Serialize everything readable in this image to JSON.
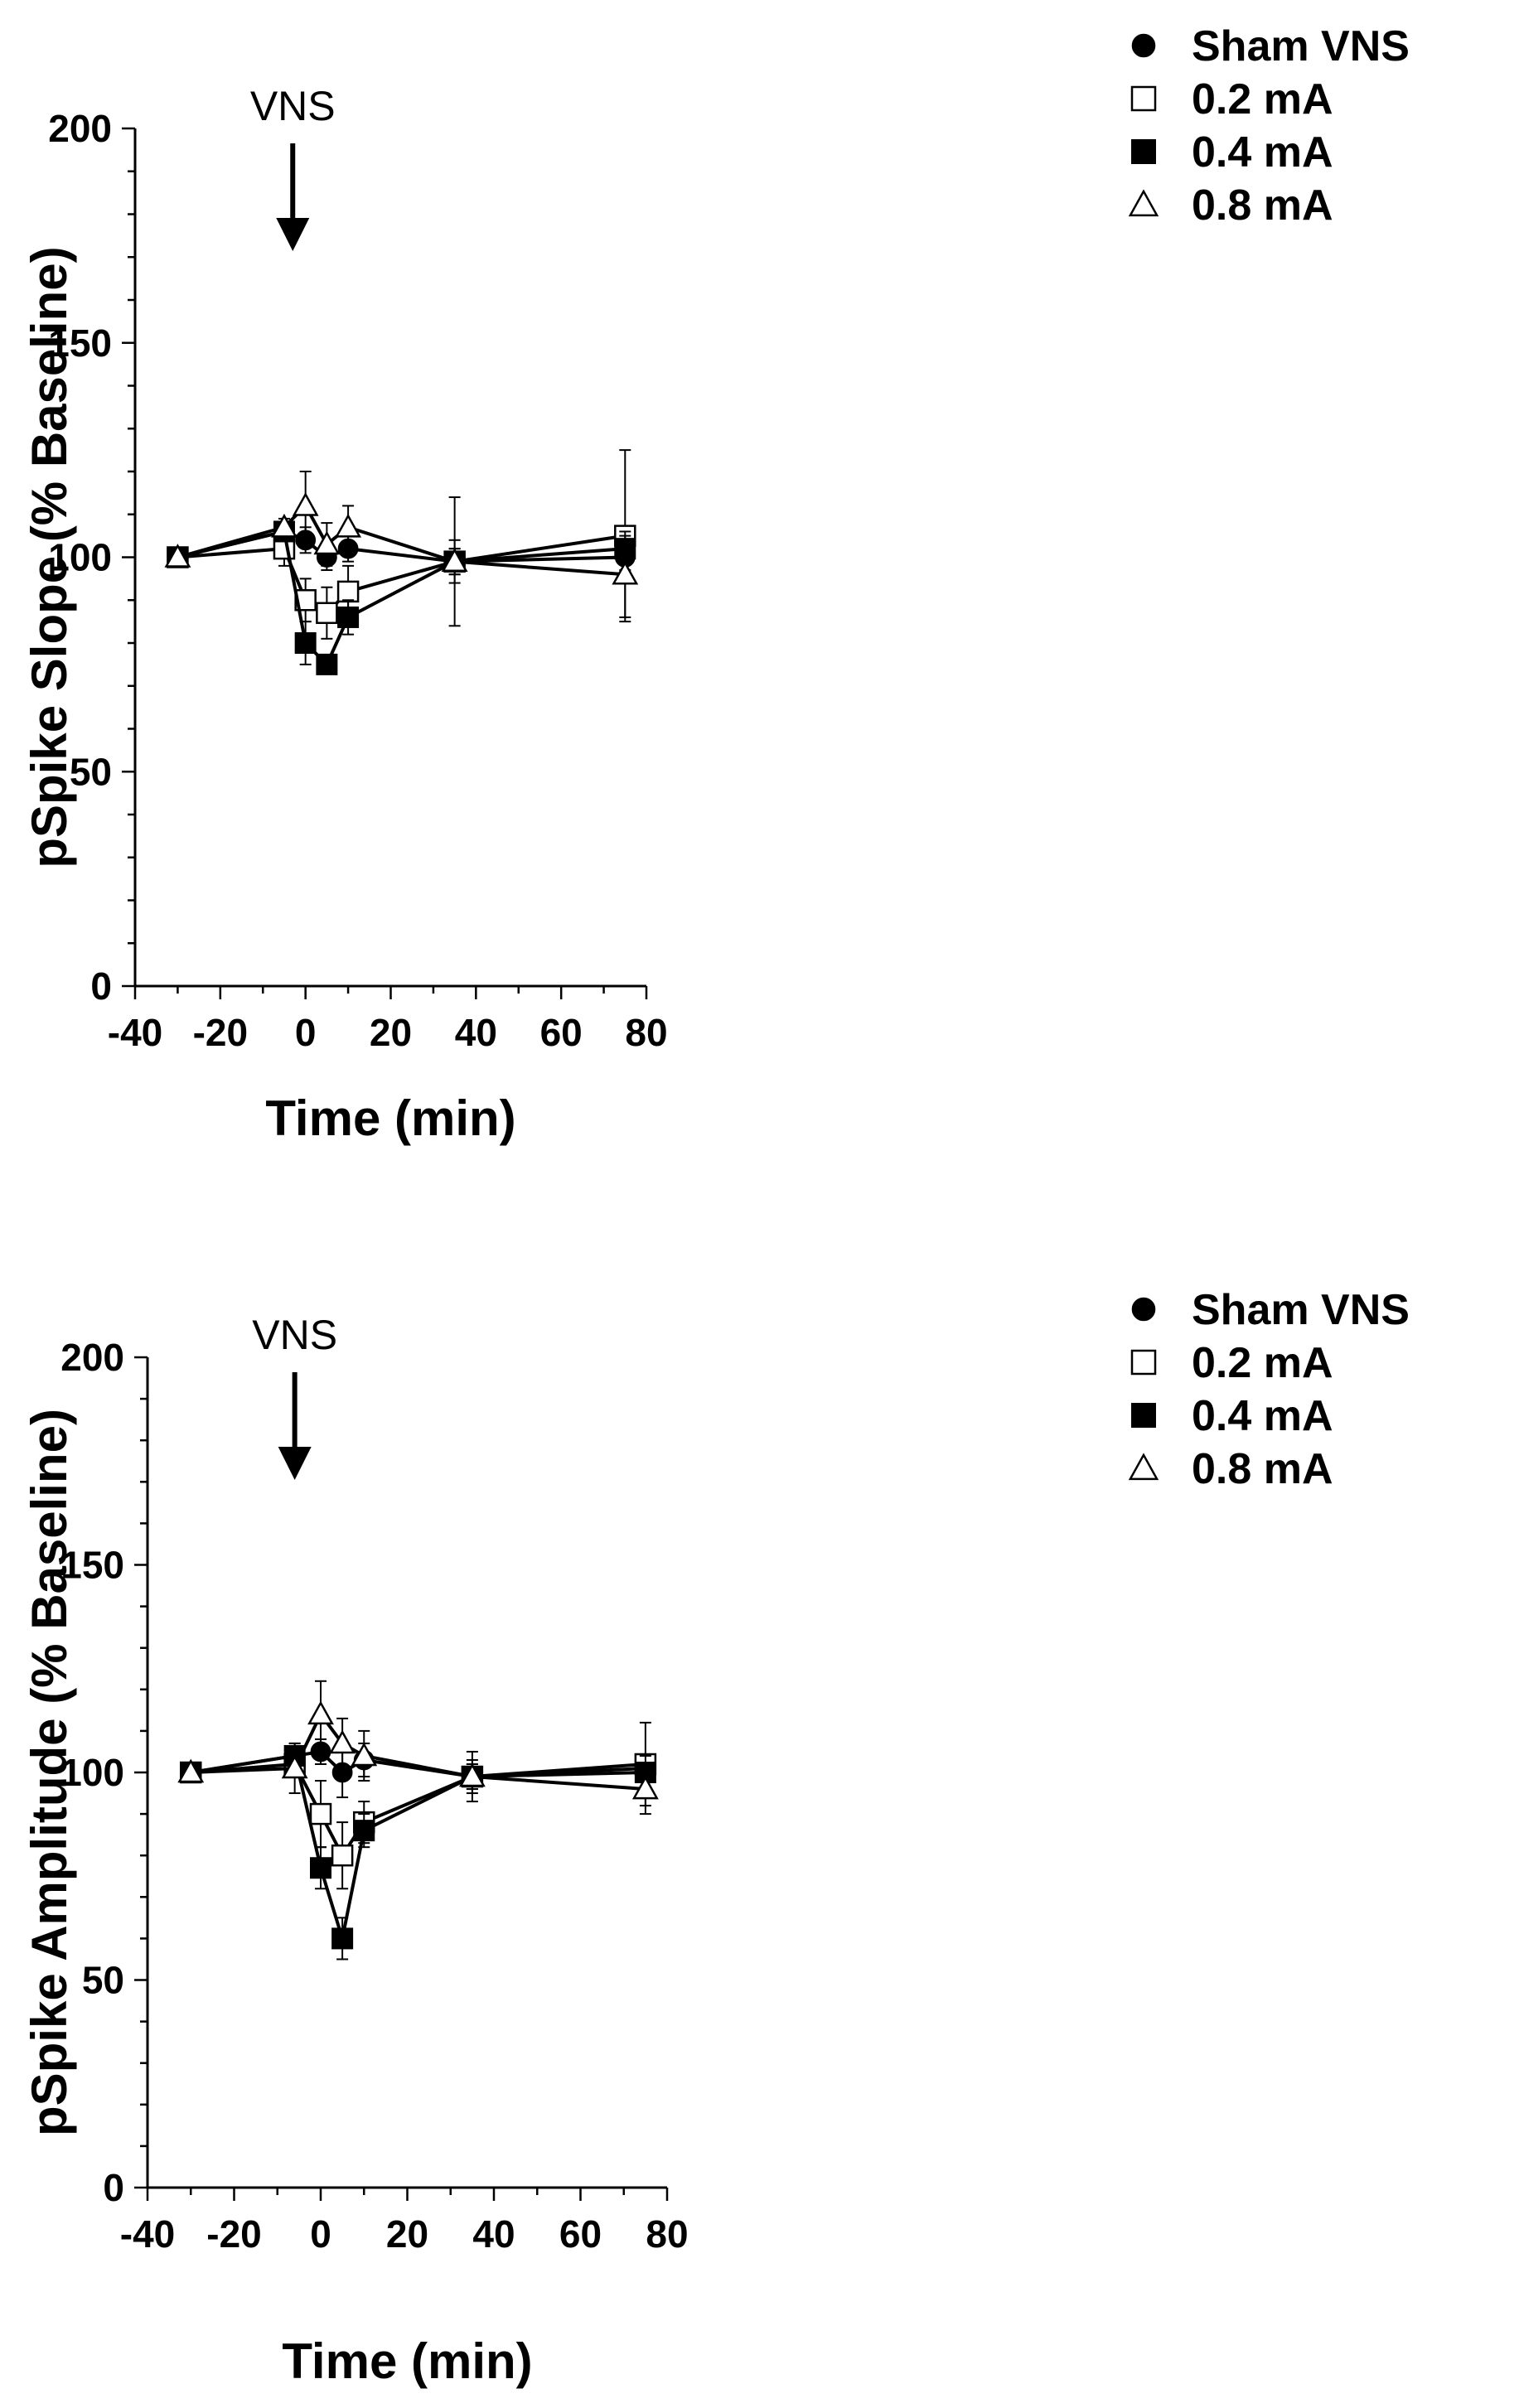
{
  "chart_data": [
    {
      "type": "line",
      "title": "",
      "xlabel": "Time (min)",
      "ylabel": "pSpike Slope (% Baseline)",
      "xlim": [
        -40,
        80
      ],
      "ylim": [
        0,
        200
      ],
      "xticks": [
        -40,
        -20,
        0,
        20,
        40,
        60,
        80
      ],
      "yticks": [
        0,
        50,
        100,
        150,
        200
      ],
      "legend_position": "top-right",
      "annotation": {
        "label": "VNS",
        "x": -3
      },
      "x": [
        -30,
        -5,
        0,
        5,
        10,
        35,
        75
      ],
      "series": [
        {
          "name": "Sham VNS",
          "marker": "filled-circle",
          "values": [
            100,
            106,
            104,
            100,
            102,
            99,
            100
          ],
          "errors": [
            0,
            2,
            3,
            3,
            3,
            3,
            3
          ]
        },
        {
          "name": "0.2 mA",
          "marker": "open-square",
          "values": [
            100,
            102,
            90,
            87,
            92,
            99,
            105
          ],
          "errors": [
            0,
            4,
            5,
            6,
            6,
            5,
            20
          ]
        },
        {
          "name": "0.4 mA",
          "marker": "filled-square",
          "values": [
            100,
            106,
            80,
            75,
            86,
            99,
            102
          ],
          "errors": [
            0,
            2,
            5,
            2,
            4,
            3,
            3
          ]
        },
        {
          "name": "0.8 mA",
          "marker": "open-triangle",
          "values": [
            100,
            107,
            112,
            103,
            107,
            99,
            96
          ],
          "errors": [
            0,
            2,
            8,
            5,
            5,
            15,
            10
          ]
        }
      ]
    },
    {
      "type": "line",
      "title": "",
      "xlabel": "Time (min)",
      "ylabel": "pSpike Amplitude (% Baseline)",
      "xlim": [
        -40,
        80
      ],
      "ylim": [
        0,
        200
      ],
      "xticks": [
        -40,
        -20,
        0,
        20,
        40,
        60,
        80
      ],
      "yticks": [
        0,
        50,
        100,
        150,
        200
      ],
      "legend_position": "top-right",
      "annotation": {
        "label": "VNS",
        "x": -6
      },
      "x": [
        -30,
        -6,
        0,
        5,
        10,
        35,
        75
      ],
      "series": [
        {
          "name": "Sham VNS",
          "marker": "filled-circle",
          "values": [
            100,
            104,
            105,
            100,
            103,
            99,
            101
          ],
          "errors": [
            0,
            3,
            3,
            6,
            4,
            3,
            3
          ]
        },
        {
          "name": "0.2 mA",
          "marker": "open-square",
          "values": [
            100,
            102,
            90,
            80,
            88,
            99,
            102
          ],
          "errors": [
            0,
            3,
            8,
            8,
            5,
            4,
            10
          ]
        },
        {
          "name": "0.4 mA",
          "marker": "filled-square",
          "values": [
            100,
            104,
            77,
            60,
            86,
            99,
            100
          ],
          "errors": [
            0,
            2,
            5,
            5,
            4,
            3,
            4
          ]
        },
        {
          "name": "0.8 mA",
          "marker": "open-triangle",
          "values": [
            100,
            101,
            114,
            107,
            104,
            99,
            96
          ],
          "errors": [
            0,
            6,
            8,
            6,
            6,
            6,
            6
          ]
        }
      ]
    }
  ]
}
